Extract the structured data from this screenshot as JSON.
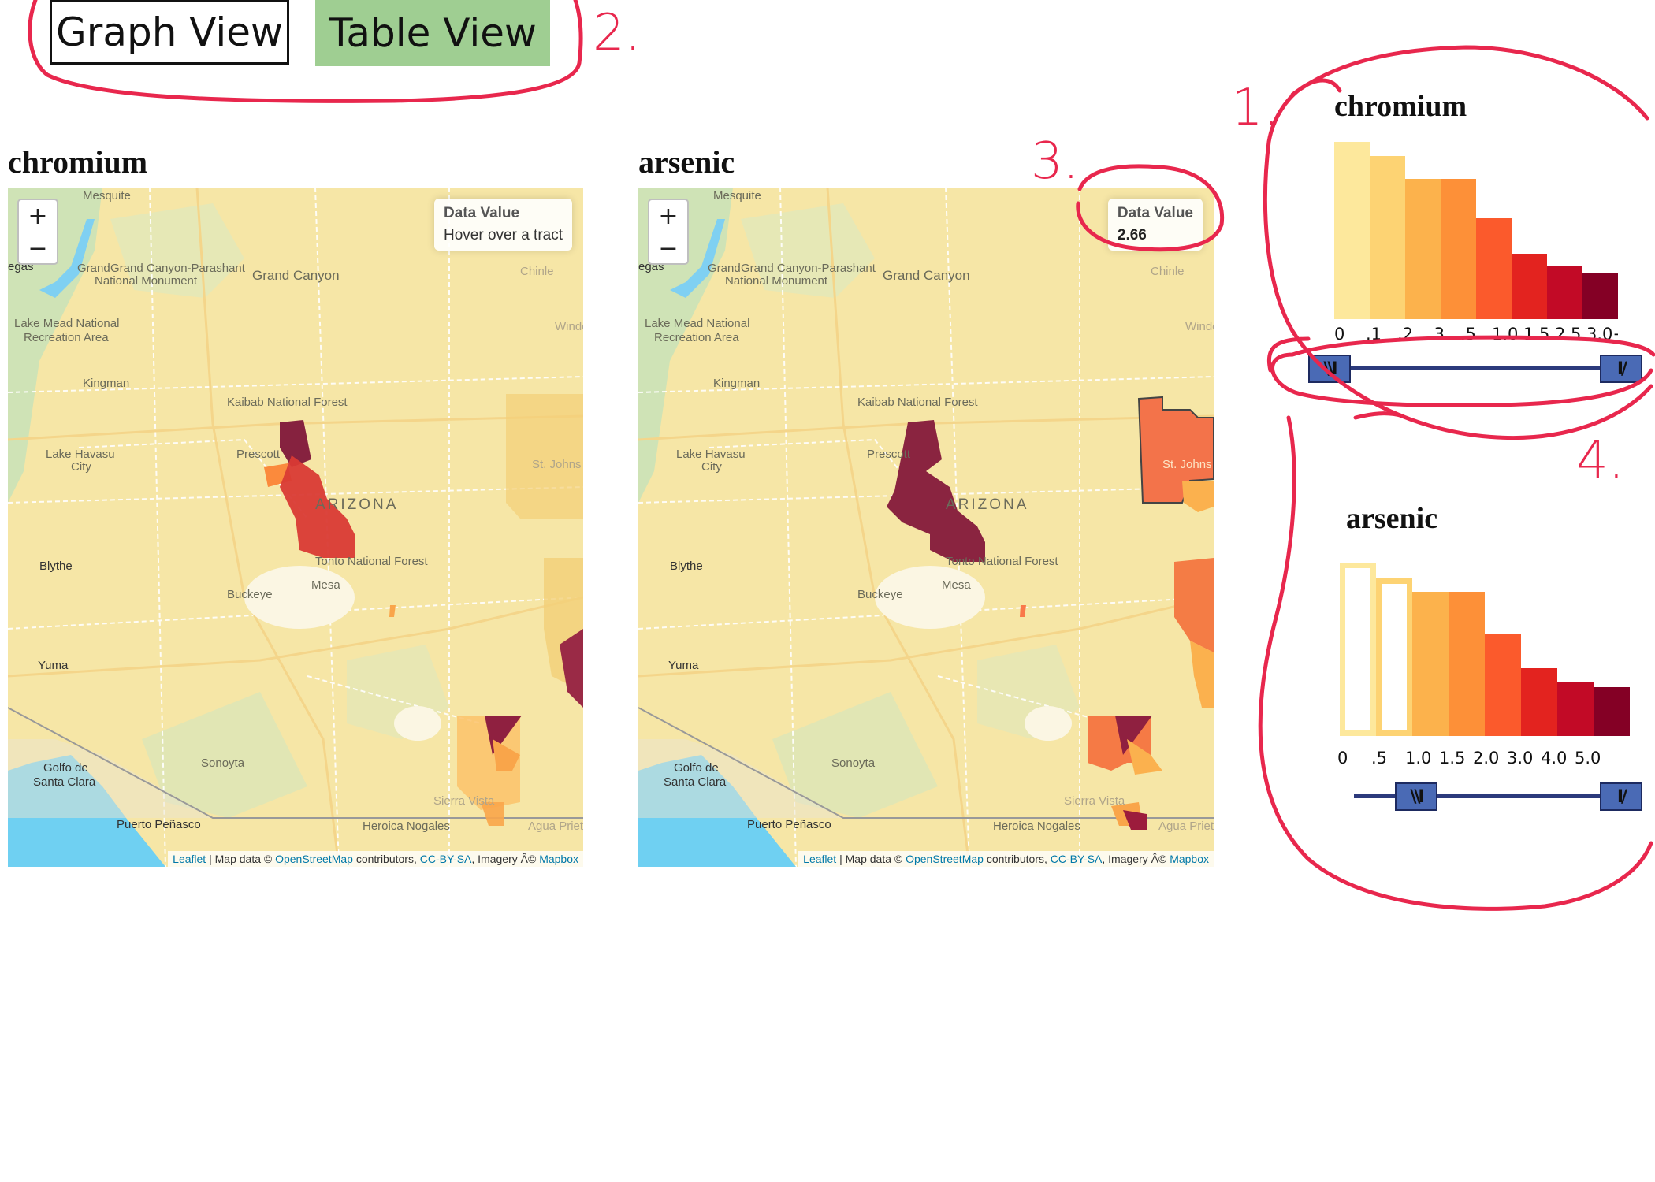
{
  "view_buttons": {
    "graph": "Graph View",
    "table": "Table View"
  },
  "maps": [
    {
      "title": "chromium",
      "info_title": "Data Value",
      "info_value": "Hover over a tract",
      "zoom_in": "+",
      "zoom_out": "−",
      "attribution": {
        "leaflet": "Leaflet",
        "mid1": " | Map data © ",
        "osm": "OpenStreetMap",
        "mid2": " contributors, ",
        "license": "CC-BY-SA",
        "mid3": ", Imagery Â© ",
        "mapbox": "Mapbox"
      }
    },
    {
      "title": "arsenic",
      "info_title": "Data Value",
      "info_value": "2.66",
      "zoom_in": "+",
      "zoom_out": "−",
      "attribution": {
        "leaflet": "Leaflet",
        "mid1": " | Map data © ",
        "osm": "OpenStreetMap",
        "mid2": " contributors, ",
        "license": "CC-BY-SA",
        "mid3": ", Imagery Â© ",
        "mapbox": "Mapbox"
      }
    }
  ],
  "place_names": {
    "mesquite": "Mesquite",
    "vegas": "egas",
    "grand_canyon_parashant": "Grand Canyon-Parashant",
    "national_monument": "National Monument",
    "grand": "Grand",
    "grand_canyon": "Grand Canyon",
    "chinle": "Chinle",
    "lake_mead": "Lake Mead National",
    "recreation_area": "Recreation Area",
    "window_rock": "Windo",
    "kingman": "Kingman",
    "kaibab": "Kaibab National Forest",
    "lake_havasu": "Lake Havasu",
    "city": "City",
    "prescott": "Prescott",
    "st_johns": "St. Johns",
    "arizona": "ARIZONA",
    "tonto": "Tonto National Forest",
    "blythe": "Blythe",
    "buckeye": "Buckeye",
    "mesa": "Mesa",
    "yuma": "Yuma",
    "golfo": "Golfo de",
    "santa_clara": "Santa Clara",
    "sonoyta": "Sonoyta",
    "sierra_vista": "Sierra Vista",
    "puerto_penasco": "Puerto Peñasco",
    "heroica_nogales": "Heroica Nogales",
    "agua_prieta": "Agua Prieta"
  },
  "legends": [
    {
      "title": "chromium",
      "ticks": [
        "0",
        ".1",
        ".2",
        ".3",
        ".5",
        "1.0",
        "1.5",
        "2.5",
        "3.0+"
      ],
      "colors": [
        "#fde89c",
        "#fdd373",
        "#fcb24c",
        "#fd9038",
        "#fb5a2c",
        "#e3231f",
        "#c20a26",
        "#840025"
      ],
      "levels": [
        1.0,
        0.92,
        0.79,
        0.79,
        0.57,
        0.37,
        0.3,
        0.26
      ],
      "selected": [
        true,
        true,
        true,
        true,
        true,
        true,
        true,
        true
      ],
      "range_handles": {
        "left": "\\\\I",
        "right": "I/"
      },
      "range": [
        "0",
        "3.0+"
      ]
    },
    {
      "title": "arsenic",
      "ticks": [
        "0",
        ".5",
        "1.0",
        "1.5",
        "2.0",
        "3.0",
        "4.0",
        "5.0"
      ],
      "colors": [
        "#fde89c",
        "#fdd373",
        "#fcb24c",
        "#fd9038",
        "#fb5a2c",
        "#e3231f",
        "#c20a26",
        "#840025"
      ],
      "levels": [
        1.0,
        0.91,
        0.83,
        0.83,
        0.59,
        0.39,
        0.31,
        0.28
      ],
      "selected": [
        false,
        false,
        true,
        true,
        true,
        true,
        true,
        true
      ],
      "range_handles": {
        "left": "\\\\I",
        "right": "I/"
      },
      "range": [
        "1.0",
        "5.0"
      ]
    }
  ],
  "annotations": [
    "1.",
    "2.",
    "3.",
    "4."
  ],
  "colors": {
    "annotation": "#e8274d",
    "button_green": "#9fce92",
    "handle": "#4a6ab5",
    "slider": "#2c3a7c"
  }
}
